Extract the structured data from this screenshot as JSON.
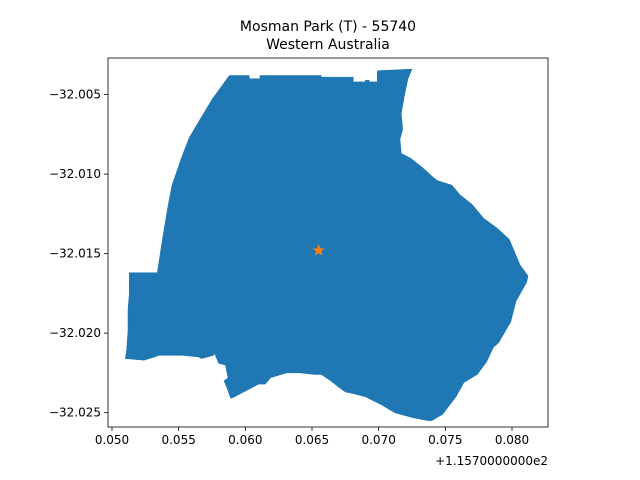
{
  "title_line1": "Mosman Park (T) - 55740",
  "title_line2": "Western Australia",
  "x_offset_label": "+1.1570000000e2",
  "colors": {
    "region": "#1f77b4",
    "marker": "#ff7f0e"
  },
  "chart_data": {
    "type": "map",
    "title": "Mosman Park (T) - 55740\nWestern Australia",
    "x_offset": 115.7,
    "xlim": [
      0.0497,
      0.0827
    ],
    "ylim": [
      -32.0259,
      -32.0027
    ],
    "xticks": [
      0.05,
      0.055,
      0.06,
      0.065,
      0.07,
      0.075,
      0.08
    ],
    "xtick_labels": [
      "0.050",
      "0.055",
      "0.060",
      "0.065",
      "0.070",
      "0.075",
      "0.080"
    ],
    "yticks": [
      -32.005,
      -32.01,
      -32.015,
      -32.02,
      -32.025
    ],
    "ytick_labels": [
      "−32.005",
      "−32.010",
      "−32.015",
      "−32.020",
      "−32.025"
    ],
    "centroid": {
      "x": 0.0655,
      "y": -32.0148,
      "marker": "star"
    },
    "boundary": [
      [
        0.0588,
        -32.0038
      ],
      [
        0.0603,
        -32.0038
      ],
      [
        0.0603,
        -32.004
      ],
      [
        0.0611,
        -32.004
      ],
      [
        0.0611,
        -32.0038
      ],
      [
        0.0657,
        -32.0038
      ],
      [
        0.0657,
        -32.0039
      ],
      [
        0.0681,
        -32.0039
      ],
      [
        0.0681,
        -32.0042
      ],
      [
        0.069,
        -32.0042
      ],
      [
        0.069,
        -32.0041
      ],
      [
        0.0693,
        -32.0041
      ],
      [
        0.0693,
        -32.0042
      ],
      [
        0.0699,
        -32.0042
      ],
      [
        0.0699,
        -32.0035
      ],
      [
        0.0725,
        -32.0034
      ],
      [
        0.0722,
        -32.004
      ],
      [
        0.0719,
        -32.0052
      ],
      [
        0.0717,
        -32.0062
      ],
      [
        0.0718,
        -32.0072
      ],
      [
        0.0716,
        -32.0078
      ],
      [
        0.0717,
        -32.0087
      ],
      [
        0.0724,
        -32.009
      ],
      [
        0.0733,
        -32.0096
      ],
      [
        0.0741,
        -32.0102
      ],
      [
        0.0744,
        -32.0104
      ],
      [
        0.0755,
        -32.0107
      ],
      [
        0.0761,
        -32.0113
      ],
      [
        0.077,
        -32.0119
      ],
      [
        0.0779,
        -32.0128
      ],
      [
        0.0789,
        -32.0134
      ],
      [
        0.0798,
        -32.0141
      ],
      [
        0.0806,
        -32.0157
      ],
      [
        0.0812,
        -32.0164
      ],
      [
        0.0811,
        -32.0168
      ],
      [
        0.0803,
        -32.018
      ],
      [
        0.0799,
        -32.0193
      ],
      [
        0.079,
        -32.0206
      ],
      [
        0.0786,
        -32.0209
      ],
      [
        0.0781,
        -32.0218
      ],
      [
        0.0774,
        -32.0226
      ],
      [
        0.0768,
        -32.0229
      ],
      [
        0.0764,
        -32.0231
      ],
      [
        0.0758,
        -32.024
      ],
      [
        0.0748,
        -32.0251
      ],
      [
        0.074,
        -32.0255
      ],
      [
        0.0737,
        -32.0255
      ],
      [
        0.0725,
        -32.0253
      ],
      [
        0.0712,
        -32.025
      ],
      [
        0.0702,
        -32.0245
      ],
      [
        0.069,
        -32.024
      ],
      [
        0.0681,
        -32.0238
      ],
      [
        0.0675,
        -32.0237
      ],
      [
        0.067,
        -32.0234
      ],
      [
        0.0664,
        -32.023
      ],
      [
        0.0657,
        -32.0226
      ],
      [
        0.0652,
        -32.0226
      ],
      [
        0.0641,
        -32.0225
      ],
      [
        0.0631,
        -32.0225
      ],
      [
        0.0627,
        -32.0226
      ],
      [
        0.0619,
        -32.0228
      ],
      [
        0.0615,
        -32.0232
      ],
      [
        0.061,
        -32.0232
      ],
      [
        0.0601,
        -32.0236
      ],
      [
        0.0592,
        -32.024
      ],
      [
        0.0589,
        -32.0241
      ],
      [
        0.0586,
        -32.0234
      ],
      [
        0.0584,
        -32.023
      ],
      [
        0.0587,
        -32.0228
      ],
      [
        0.0585,
        -32.022
      ],
      [
        0.058,
        -32.0219
      ],
      [
        0.0577,
        -32.0213
      ],
      [
        0.0576,
        -32.0214
      ],
      [
        0.0567,
        -32.0216
      ],
      [
        0.0565,
        -32.0215
      ],
      [
        0.0553,
        -32.0214
      ],
      [
        0.0545,
        -32.0214
      ],
      [
        0.0535,
        -32.0214
      ],
      [
        0.0532,
        -32.0215
      ],
      [
        0.0528,
        -32.0216
      ],
      [
        0.0524,
        -32.0217
      ],
      [
        0.051,
        -32.0216
      ],
      [
        0.0511,
        -32.021
      ],
      [
        0.0512,
        -32.0198
      ],
      [
        0.0512,
        -32.0185
      ],
      [
        0.0513,
        -32.0175
      ],
      [
        0.0513,
        -32.0162
      ],
      [
        0.0534,
        -32.0162
      ],
      [
        0.0538,
        -32.014
      ],
      [
        0.0542,
        -32.012
      ],
      [
        0.0545,
        -32.0107
      ],
      [
        0.0552,
        -32.009
      ],
      [
        0.0558,
        -32.0077
      ],
      [
        0.0565,
        -32.0067
      ],
      [
        0.0575,
        -32.0053
      ],
      [
        0.0588,
        -32.0038
      ]
    ]
  }
}
